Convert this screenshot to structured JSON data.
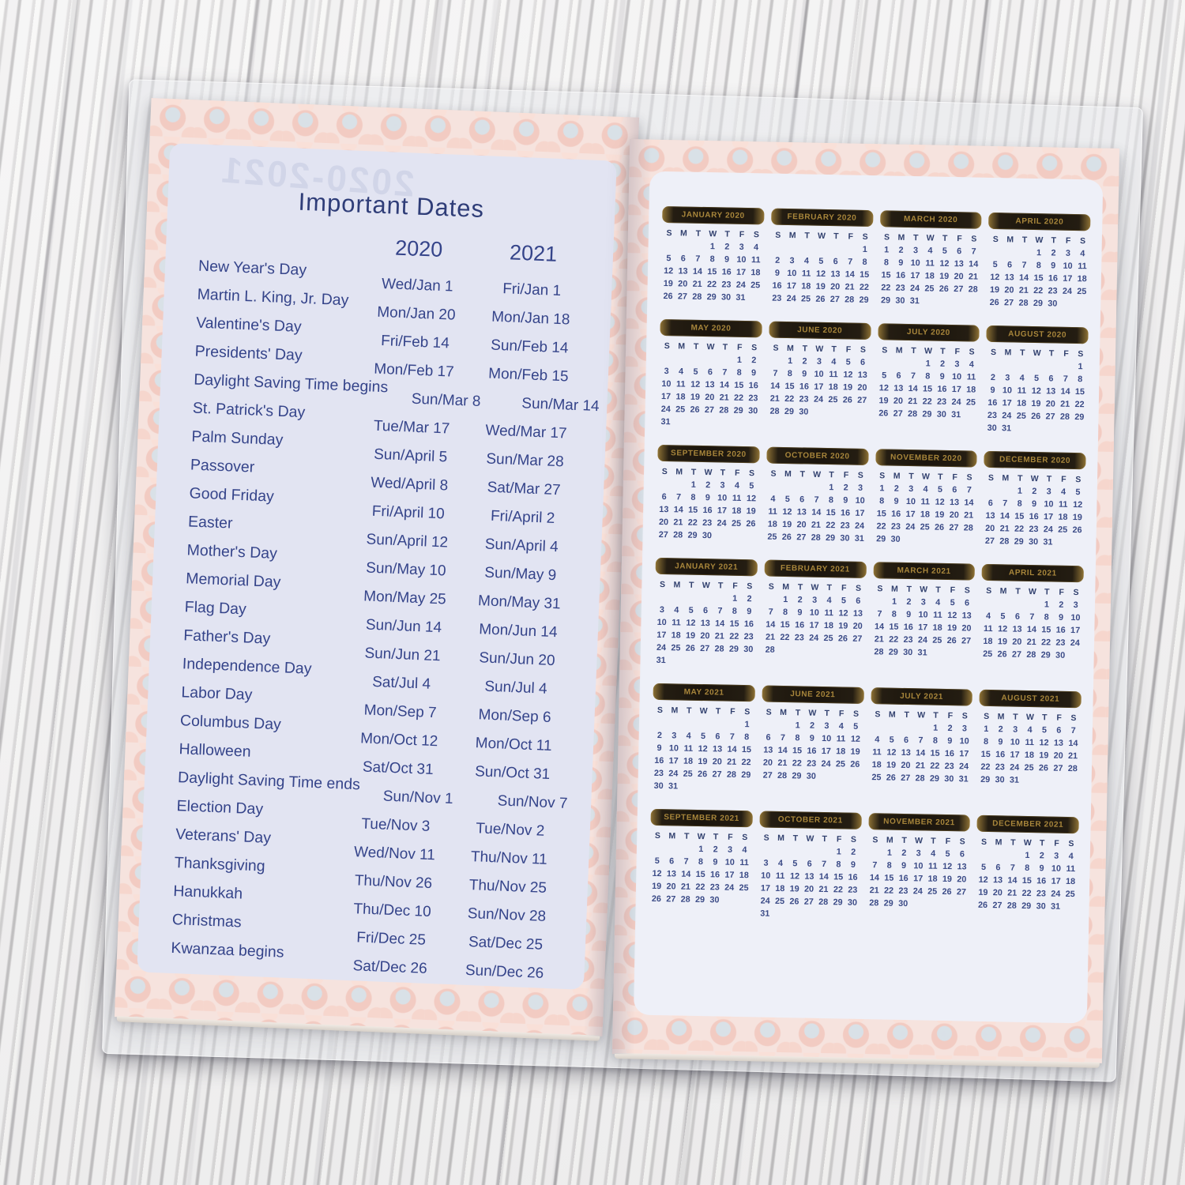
{
  "left_page": {
    "show_through": "2020-2021",
    "title": "Important Dates",
    "col_headers": [
      "2020",
      "2021"
    ],
    "rows": [
      {
        "name": "New Year's Day",
        "d2020": "Wed/Jan 1",
        "d2021": "Fri/Jan 1"
      },
      {
        "name": "Martin L. King, Jr. Day",
        "d2020": "Mon/Jan 20",
        "d2021": "Mon/Jan 18"
      },
      {
        "name": "Valentine's Day",
        "d2020": "Fri/Feb 14",
        "d2021": "Sun/Feb 14"
      },
      {
        "name": "Presidents' Day",
        "d2020": "Mon/Feb 17",
        "d2021": "Mon/Feb 15"
      },
      {
        "name": "Daylight Saving Time begins",
        "d2020": "Sun/Mar 8",
        "d2021": "Sun/Mar 14"
      },
      {
        "name": "St. Patrick's Day",
        "d2020": "Tue/Mar 17",
        "d2021": "Wed/Mar 17"
      },
      {
        "name": "Palm Sunday",
        "d2020": "Sun/April 5",
        "d2021": "Sun/Mar 28"
      },
      {
        "name": "Passover",
        "d2020": "Wed/April 8",
        "d2021": "Sat/Mar 27"
      },
      {
        "name": "Good Friday",
        "d2020": "Fri/April 10",
        "d2021": "Fri/April 2"
      },
      {
        "name": "Easter",
        "d2020": "Sun/April 12",
        "d2021": "Sun/April 4"
      },
      {
        "name": "Mother's Day",
        "d2020": "Sun/May 10",
        "d2021": "Sun/May 9"
      },
      {
        "name": "Memorial Day",
        "d2020": "Mon/May 25",
        "d2021": "Mon/May 31"
      },
      {
        "name": "Flag Day",
        "d2020": "Sun/Jun 14",
        "d2021": "Mon/Jun 14"
      },
      {
        "name": "Father's Day",
        "d2020": "Sun/Jun 21",
        "d2021": "Sun/Jun 20"
      },
      {
        "name": "Independence Day",
        "d2020": "Sat/Jul 4",
        "d2021": "Sun/Jul 4"
      },
      {
        "name": "Labor Day",
        "d2020": "Mon/Sep 7",
        "d2021": "Mon/Sep 6"
      },
      {
        "name": "Columbus Day",
        "d2020": "Mon/Oct 12",
        "d2021": "Mon/Oct 11"
      },
      {
        "name": "Halloween",
        "d2020": "Sat/Oct 31",
        "d2021": "Sun/Oct 31"
      },
      {
        "name": "Daylight Saving Time ends",
        "d2020": "Sun/Nov 1",
        "d2021": "Sun/Nov 7"
      },
      {
        "name": "Election Day",
        "d2020": "Tue/Nov 3",
        "d2021": "Tue/Nov 2"
      },
      {
        "name": "Veterans' Day",
        "d2020": "Wed/Nov 11",
        "d2021": "Thu/Nov 11"
      },
      {
        "name": "Thanksgiving",
        "d2020": "Thu/Nov 26",
        "d2021": "Thu/Nov 25"
      },
      {
        "name": "Hanukkah",
        "d2020": "Thu/Dec 10",
        "d2021": "Sun/Nov 28"
      },
      {
        "name": "Christmas",
        "d2020": "Fri/Dec 25",
        "d2021": "Sat/Dec 25"
      },
      {
        "name": "Kwanzaa begins",
        "d2020": "Sat/Dec 26",
        "d2021": "Sun/Dec 26"
      }
    ]
  },
  "right_page": {
    "weekdays": [
      "S",
      "M",
      "T",
      "W",
      "T",
      "F",
      "S"
    ],
    "months": [
      {
        "label": "JANUARY 2020",
        "start": 3,
        "days": 31
      },
      {
        "label": "FEBRUARY 2020",
        "start": 6,
        "days": 29
      },
      {
        "label": "MARCH 2020",
        "start": 0,
        "days": 31
      },
      {
        "label": "APRIL 2020",
        "start": 3,
        "days": 30
      },
      {
        "label": "MAY 2020",
        "start": 5,
        "days": 31
      },
      {
        "label": "JUNE 2020",
        "start": 1,
        "days": 30
      },
      {
        "label": "JULY 2020",
        "start": 3,
        "days": 31
      },
      {
        "label": "AUGUST 2020",
        "start": 6,
        "days": 31
      },
      {
        "label": "SEPTEMBER 2020",
        "start": 2,
        "days": 30
      },
      {
        "label": "OCTOBER 2020",
        "start": 4,
        "days": 31
      },
      {
        "label": "NOVEMBER 2020",
        "start": 0,
        "days": 30
      },
      {
        "label": "DECEMBER 2020",
        "start": 2,
        "days": 31
      },
      {
        "label": "JANUARY 2021",
        "start": 5,
        "days": 31
      },
      {
        "label": "FEBRUARY 2021",
        "start": 1,
        "days": 28
      },
      {
        "label": "MARCH 2021",
        "start": 1,
        "days": 31
      },
      {
        "label": "APRIL 2021",
        "start": 4,
        "days": 30
      },
      {
        "label": "MAY 2021",
        "start": 6,
        "days": 31
      },
      {
        "label": "JUNE 2021",
        "start": 2,
        "days": 30
      },
      {
        "label": "JULY 2021",
        "start": 4,
        "days": 31
      },
      {
        "label": "AUGUST 2021",
        "start": 0,
        "days": 31
      },
      {
        "label": "SEPTEMBER 2021",
        "start": 3,
        "days": 30
      },
      {
        "label": "OCTOBER 2021",
        "start": 5,
        "days": 31
      },
      {
        "label": "NOVEMBER 2021",
        "start": 1,
        "days": 30
      },
      {
        "label": "DECEMBER 2021",
        "start": 3,
        "days": 31
      }
    ]
  },
  "colors": {
    "ink": "#35448a",
    "ink-dark": "#2f3d78",
    "pill-bg": "#1b150d",
    "pill-gold": "#a8863b",
    "floral": "#f2cbc2",
    "page-lav": "#e2e4f2",
    "panel-white": "#eef0f8"
  }
}
